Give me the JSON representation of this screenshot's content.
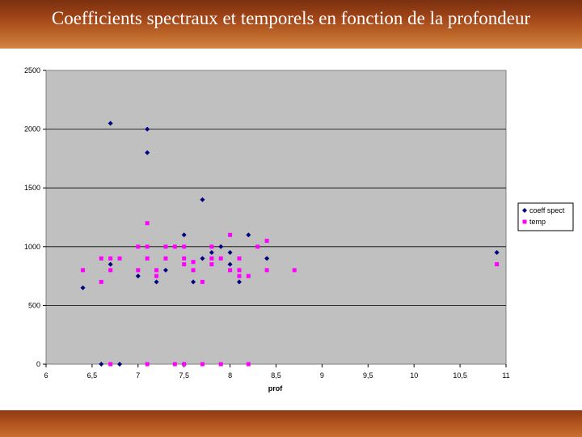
{
  "slide": {
    "title": "Coefficients spectraux et temporels en fonction de la profondeur"
  },
  "colors": {
    "header": "#a4481a",
    "plot_bg": "#c0c0c0",
    "series1": "#000080",
    "series2": "#ff00ff"
  },
  "chart_data": {
    "type": "scatter",
    "title": "",
    "xlabel": "prof",
    "ylabel": "",
    "xlim": [
      6,
      11
    ],
    "ylim": [
      0,
      2500
    ],
    "x_ticks": [
      "6",
      "6,5",
      "7",
      "7,5",
      "8",
      "8,5",
      "9",
      "9,5",
      "10",
      "10,5",
      "11"
    ],
    "y_ticks": [
      "0",
      "500",
      "1000",
      "1500",
      "2000",
      "2500"
    ],
    "grid": "horizontal",
    "legend_position": "right",
    "series": [
      {
        "name": "coeff spect",
        "marker": "diamond",
        "points": [
          [
            6.4,
            650
          ],
          [
            6.6,
            0
          ],
          [
            6.7,
            850
          ],
          [
            6.7,
            2050
          ],
          [
            6.8,
            0
          ],
          [
            7.0,
            750
          ],
          [
            7.1,
            2000
          ],
          [
            7.1,
            1800
          ],
          [
            7.2,
            700
          ],
          [
            7.3,
            800
          ],
          [
            7.5,
            1100
          ],
          [
            7.5,
            0
          ],
          [
            7.6,
            700
          ],
          [
            7.7,
            1400
          ],
          [
            7.7,
            900
          ],
          [
            7.8,
            950
          ],
          [
            7.9,
            1000
          ],
          [
            8.0,
            950
          ],
          [
            8.0,
            850
          ],
          [
            8.1,
            700
          ],
          [
            8.2,
            1100
          ],
          [
            8.4,
            900
          ],
          [
            10.9,
            950
          ]
        ]
      },
      {
        "name": "temp",
        "marker": "square",
        "points": [
          [
            6.4,
            800
          ],
          [
            6.6,
            900
          ],
          [
            6.6,
            700
          ],
          [
            6.7,
            900
          ],
          [
            6.7,
            800
          ],
          [
            6.7,
            0
          ],
          [
            6.8,
            900
          ],
          [
            7.0,
            1000
          ],
          [
            7.0,
            800
          ],
          [
            7.1,
            1200
          ],
          [
            7.1,
            1000
          ],
          [
            7.1,
            900
          ],
          [
            7.1,
            0
          ],
          [
            7.2,
            800
          ],
          [
            7.2,
            750
          ],
          [
            7.3,
            1000
          ],
          [
            7.3,
            900
          ],
          [
            7.4,
            1000
          ],
          [
            7.4,
            0
          ],
          [
            7.5,
            1000
          ],
          [
            7.5,
            900
          ],
          [
            7.5,
            850
          ],
          [
            7.5,
            0
          ],
          [
            7.6,
            870
          ],
          [
            7.6,
            800
          ],
          [
            7.7,
            700
          ],
          [
            7.7,
            0
          ],
          [
            7.8,
            1000
          ],
          [
            7.8,
            900
          ],
          [
            7.8,
            850
          ],
          [
            7.9,
            900
          ],
          [
            7.9,
            0
          ],
          [
            8.0,
            1100
          ],
          [
            8.0,
            800
          ],
          [
            8.1,
            900
          ],
          [
            8.1,
            800
          ],
          [
            8.1,
            750
          ],
          [
            8.2,
            750
          ],
          [
            8.2,
            0
          ],
          [
            8.3,
            1000
          ],
          [
            8.4,
            1050
          ],
          [
            8.4,
            800
          ],
          [
            8.7,
            800
          ],
          [
            10.9,
            850
          ]
        ]
      }
    ]
  }
}
